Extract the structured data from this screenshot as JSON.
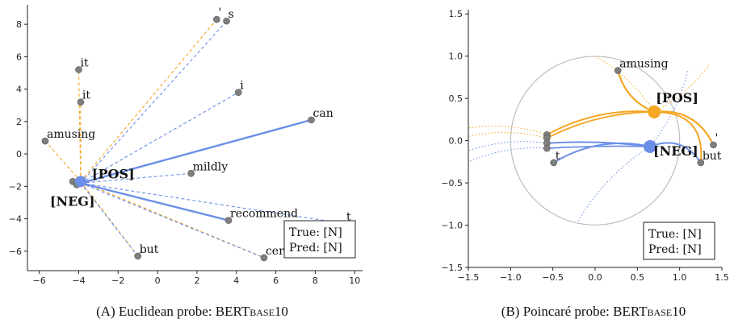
{
  "colors": {
    "pos": "#f5a623",
    "neg": "#6b8fe8",
    "point": "#7f7f7f",
    "circle": "#bdbdbd"
  },
  "chart_data": [
    {
      "type": "scatter",
      "title": "",
      "caption": "(A) Euclidean probe: BERTBASE10",
      "caption_main": "(A) Euclidean probe: BERT",
      "caption_small": "BASE",
      "caption_tail": "10",
      "xlim": [
        -6.6,
        10.4
      ],
      "ylim": [
        -7.2,
        9.2
      ],
      "xticks": [
        -6,
        -4,
        -2,
        0,
        2,
        4,
        6,
        8,
        10
      ],
      "yticks": [
        -6,
        -4,
        -2,
        0,
        2,
        4,
        6,
        8
      ],
      "xtick_labels": [
        "−6",
        "−4",
        "−2",
        "0",
        "2",
        "4",
        "6",
        "8",
        "10"
      ],
      "ytick_labels": [
        "−6",
        "−4",
        "−2",
        "0",
        "2",
        "4",
        "6",
        "8"
      ],
      "classes": [
        {
          "label": "[POS]",
          "x": -3.9,
          "y": -1.7
        },
        {
          "label": "[NEG]",
          "x": -3.9,
          "y": -1.8
        }
      ],
      "points": [
        {
          "label": "'",
          "x": 3.0,
          "y": 8.3
        },
        {
          "label": "s",
          "x": 3.5,
          "y": 8.2
        },
        {
          "label": "it",
          "x": -4.0,
          "y": 5.2
        },
        {
          "label": "it",
          "x": -3.9,
          "y": 3.2
        },
        {
          "label": "i",
          "x": 4.1,
          "y": 3.8
        },
        {
          "label": "can",
          "x": 7.8,
          "y": 2.1
        },
        {
          "label": "amusing",
          "x": -5.7,
          "y": 0.8
        },
        {
          "label": "mildly",
          "x": 1.7,
          "y": -1.2
        },
        {
          "label": "recommend",
          "x": 3.6,
          "y": -4.1
        },
        {
          "label": "t",
          "x": 9.5,
          "y": -4.3
        },
        {
          "label": "but",
          "x": -1.0,
          "y": -6.3
        },
        {
          "label": "certainly",
          "x": 5.4,
          "y": -6.4
        },
        {
          "label": "",
          "x": -4.3,
          "y": -1.7
        },
        {
          "label": "",
          "x": -4.1,
          "y": -1.9
        }
      ],
      "legend": {
        "true_label": "True: [N]",
        "pred_label": "Pred: [N]"
      }
    },
    {
      "type": "scatter",
      "title": "",
      "caption": "(B) Poincaré probe: BERTBASE10",
      "caption_main": "(B) Poincaré probe: BERT",
      "caption_small": "BASE",
      "caption_tail": "10",
      "xlim": [
        -1.5,
        1.5
      ],
      "ylim": [
        -1.5,
        1.55
      ],
      "xticks": [
        -1.5,
        -1.0,
        -0.5,
        0.0,
        0.5,
        1.0,
        1.5
      ],
      "yticks": [
        -1.5,
        -1.0,
        -0.5,
        0.0,
        0.5,
        1.0,
        1.5
      ],
      "xtick_labels": [
        "−1.5",
        "−1.0",
        "−0.5",
        "0.0",
        "0.5",
        "1.0",
        "1.5"
      ],
      "ytick_labels": [
        "−1.5",
        "−1.0",
        "−0.5",
        "0.0",
        "0.5",
        "1.0",
        "1.5"
      ],
      "classes": [
        {
          "label": "[POS]",
          "x": 0.7,
          "y": 0.34
        },
        {
          "label": "[NEG]",
          "x": 0.65,
          "y": -0.07
        }
      ],
      "points": [
        {
          "label": "amusing",
          "x": 0.27,
          "y": 0.83
        },
        {
          "label": "'",
          "x": 1.4,
          "y": -0.05
        },
        {
          "label": "but",
          "x": 1.25,
          "y": -0.26
        },
        {
          "label": "t",
          "x": -0.49,
          "y": -0.26
        },
        {
          "label": "",
          "x": -0.57,
          "y": 0.07
        },
        {
          "label": "",
          "x": -0.57,
          "y": 0.03
        },
        {
          "label": "",
          "x": -0.57,
          "y": -0.03
        },
        {
          "label": "",
          "x": -0.57,
          "y": -0.09
        }
      ],
      "legend": {
        "true_label": "True: [N]",
        "pred_label": "Pred: [N]"
      }
    }
  ]
}
